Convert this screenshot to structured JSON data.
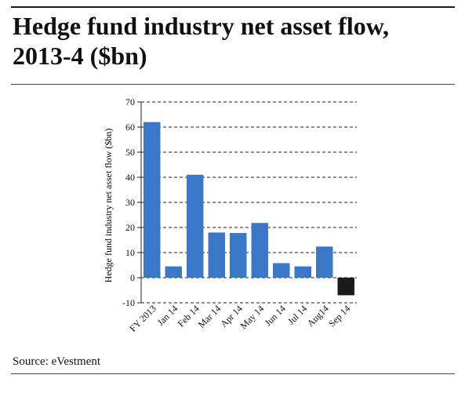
{
  "header": {
    "title_line1": "Hedge fund industry net asset flow,",
    "title_line2": "2013-4 ($bn)"
  },
  "footer": {
    "source": "Source: eVestment"
  },
  "chart_data": {
    "type": "bar",
    "title": "Hedge fund industry net asset flow, 2013-4 ($bn)",
    "xlabel": "",
    "ylabel": "Hedge fund industry net asset flow ($bn)",
    "ylim": [
      -10,
      70
    ],
    "yticks": [
      -10,
      0,
      10,
      20,
      30,
      40,
      50,
      60,
      70
    ],
    "grid": "horizontal-dashed",
    "categories": [
      "FY 2013",
      "Jan 14",
      "Feb 14",
      "Mar 14",
      "Apr 14",
      "May 14",
      "Jun 14",
      "Jul 14",
      "Aug14",
      "Sep 14"
    ],
    "values": [
      62,
      4.5,
      41,
      18,
      17.8,
      21.8,
      5.8,
      4.5,
      12.4,
      -7
    ],
    "colors": {
      "positive": "#3a77c6",
      "negative": "#1a1a1a",
      "grid": "#222222"
    }
  }
}
